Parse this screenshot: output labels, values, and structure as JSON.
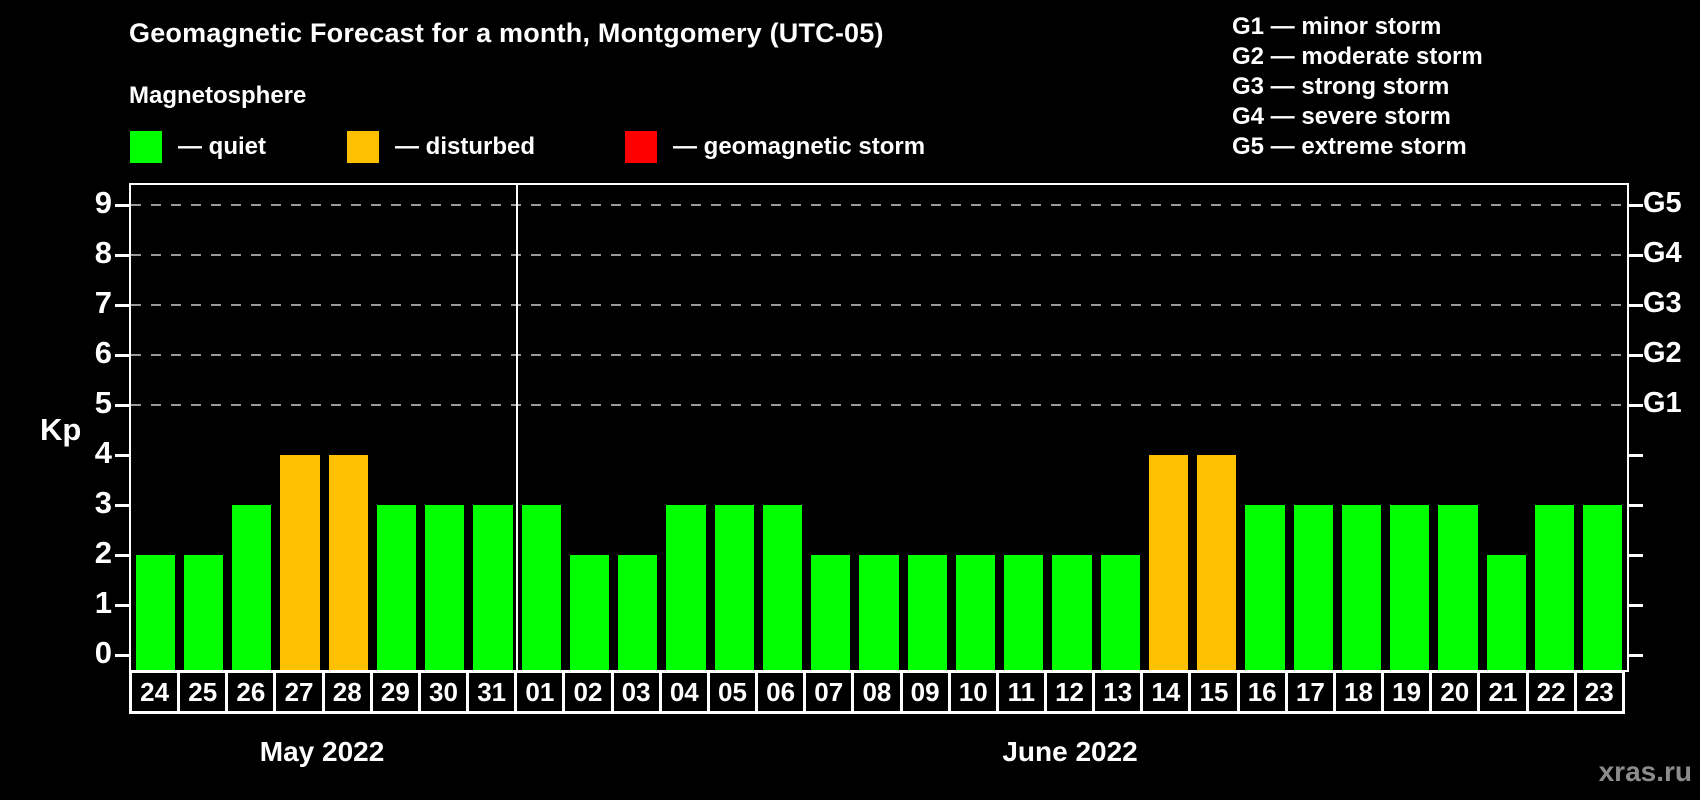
{
  "title": "Geomagnetic Forecast for a month, Montgomery (UTC-05)",
  "subtitle": "Magnetosphere",
  "watermark": "xras.ru",
  "legend": {
    "items": [
      {
        "key": "quiet",
        "label": "— quiet",
        "color": "#00ff00"
      },
      {
        "key": "disturbed",
        "label": "— disturbed",
        "color": "#ffc000"
      },
      {
        "key": "storm",
        "label": "— geomagnetic storm",
        "color": "#ff0000"
      }
    ]
  },
  "g_scale_legend": [
    "G1 — minor storm",
    "G2 — moderate storm",
    "G3 — strong storm",
    "G4 — severe storm",
    "G5 — extreme storm"
  ],
  "chart_data": {
    "type": "bar",
    "ylabel": "Kp",
    "ylim": [
      -0.3,
      9.4
    ],
    "y_ticks": [
      0,
      1,
      2,
      3,
      4,
      5,
      6,
      7,
      8,
      9
    ],
    "gridlines_at": [
      5,
      6,
      7,
      8,
      9
    ],
    "grid": "dashed-horizontal",
    "legend_position": "top",
    "right_axis_labels": [
      {
        "label": "G1",
        "value": 5
      },
      {
        "label": "G2",
        "value": 6
      },
      {
        "label": "G3",
        "value": 7
      },
      {
        "label": "G4",
        "value": 8
      },
      {
        "label": "G5",
        "value": 9
      }
    ],
    "status_colors": {
      "quiet": "#00ff00",
      "disturbed": "#ffc000",
      "storm": "#ff0000"
    },
    "months": [
      {
        "label": "May 2022",
        "days": 8
      },
      {
        "label": "June 2022",
        "days": 23
      }
    ],
    "days": [
      {
        "date": "24",
        "kp": 2,
        "status": "quiet"
      },
      {
        "date": "25",
        "kp": 2,
        "status": "quiet"
      },
      {
        "date": "26",
        "kp": 3,
        "status": "quiet"
      },
      {
        "date": "27",
        "kp": 4,
        "status": "disturbed"
      },
      {
        "date": "28",
        "kp": 4,
        "status": "disturbed"
      },
      {
        "date": "29",
        "kp": 3,
        "status": "quiet"
      },
      {
        "date": "30",
        "kp": 3,
        "status": "quiet"
      },
      {
        "date": "31",
        "kp": 3,
        "status": "quiet"
      },
      {
        "date": "01",
        "kp": 3,
        "status": "quiet"
      },
      {
        "date": "02",
        "kp": 2,
        "status": "quiet"
      },
      {
        "date": "03",
        "kp": 2,
        "status": "quiet"
      },
      {
        "date": "04",
        "kp": 3,
        "status": "quiet"
      },
      {
        "date": "05",
        "kp": 3,
        "status": "quiet"
      },
      {
        "date": "06",
        "kp": 3,
        "status": "quiet"
      },
      {
        "date": "07",
        "kp": 2,
        "status": "quiet"
      },
      {
        "date": "08",
        "kp": 2,
        "status": "quiet"
      },
      {
        "date": "09",
        "kp": 2,
        "status": "quiet"
      },
      {
        "date": "10",
        "kp": 2,
        "status": "quiet"
      },
      {
        "date": "11",
        "kp": 2,
        "status": "quiet"
      },
      {
        "date": "12",
        "kp": 2,
        "status": "quiet"
      },
      {
        "date": "13",
        "kp": 2,
        "status": "quiet"
      },
      {
        "date": "14",
        "kp": 4,
        "status": "disturbed"
      },
      {
        "date": "15",
        "kp": 4,
        "status": "disturbed"
      },
      {
        "date": "16",
        "kp": 3,
        "status": "quiet"
      },
      {
        "date": "17",
        "kp": 3,
        "status": "quiet"
      },
      {
        "date": "18",
        "kp": 3,
        "status": "quiet"
      },
      {
        "date": "19",
        "kp": 3,
        "status": "quiet"
      },
      {
        "date": "20",
        "kp": 3,
        "status": "quiet"
      },
      {
        "date": "21",
        "kp": 2,
        "status": "quiet"
      },
      {
        "date": "22",
        "kp": 3,
        "status": "quiet"
      },
      {
        "date": "23",
        "kp": 3,
        "status": "quiet"
      }
    ]
  }
}
